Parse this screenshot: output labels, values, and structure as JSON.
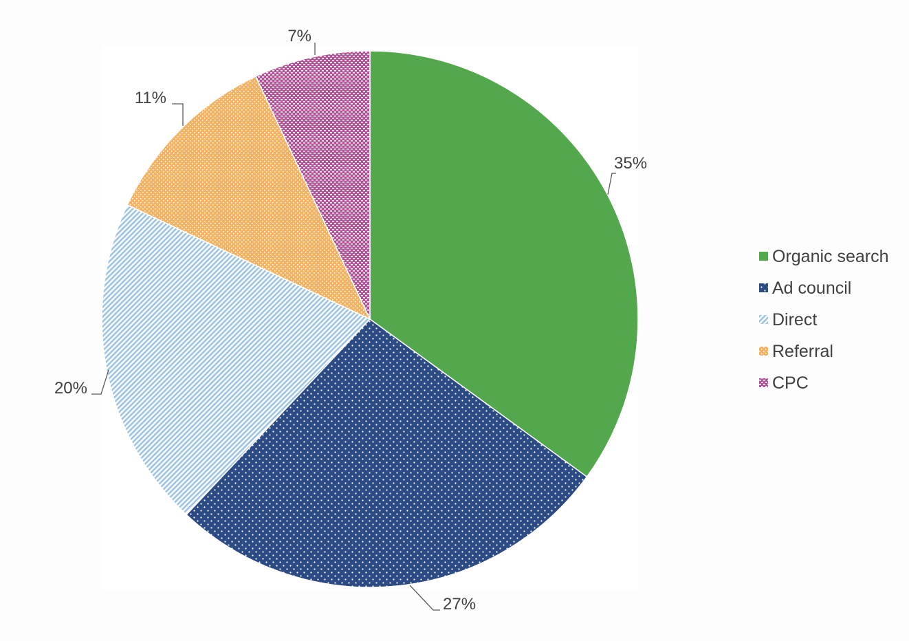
{
  "chart_data": {
    "type": "pie",
    "title": "",
    "legend_position": "right",
    "slices": [
      {
        "name": "Organic search",
        "value": 35,
        "label": "35%",
        "color": "#53a74c",
        "pattern": "solid"
      },
      {
        "name": "Ad council",
        "value": 27,
        "label": "27%",
        "color": "#2c4a84",
        "pattern": "dots"
      },
      {
        "name": "Direct",
        "value": 20,
        "label": "20%",
        "color": "#9dc3e6",
        "pattern": "diagonal-stripes"
      },
      {
        "name": "Referral",
        "value": 11,
        "label": "11%",
        "color": "#f4b363",
        "pattern": "small-checker"
      },
      {
        "name": "CPC",
        "value": 7,
        "label": "7%",
        "color": "#b5529a",
        "pattern": "small-checker"
      }
    ]
  }
}
